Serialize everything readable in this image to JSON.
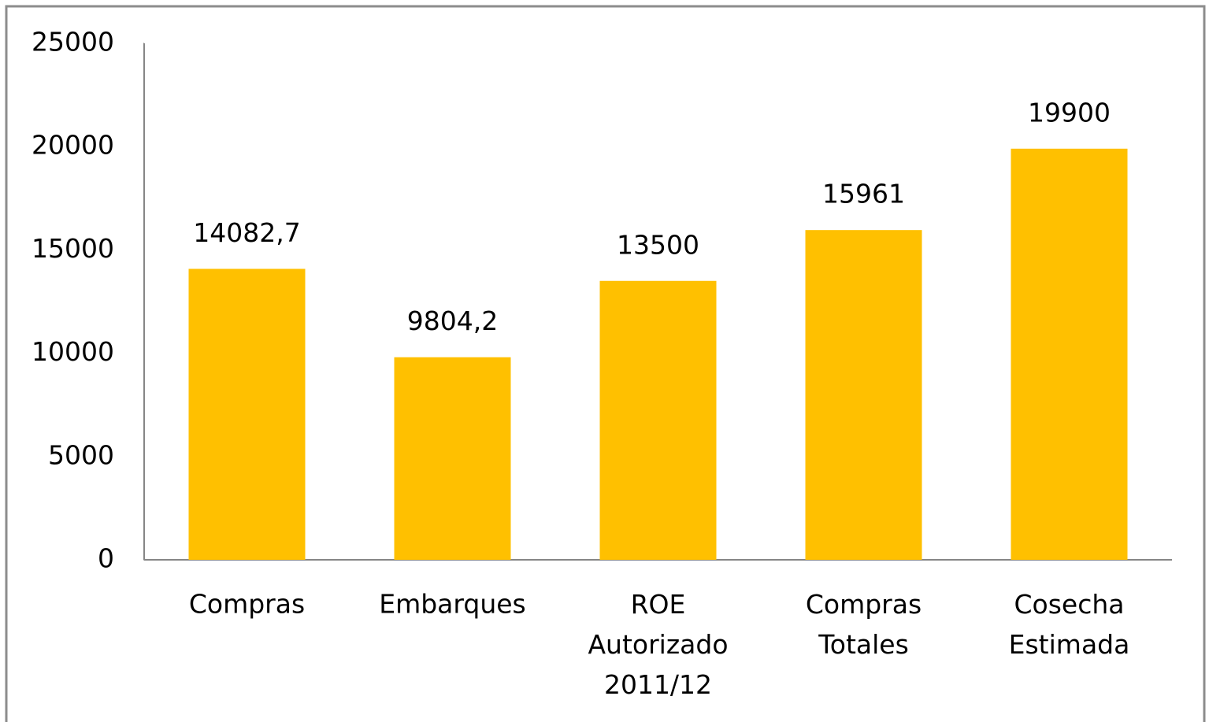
{
  "chart_data": {
    "type": "bar",
    "categories": [
      "Compras",
      "Embarques",
      "ROE\nAutorizado\n2011/12",
      "Compras\nTotales",
      "Cosecha\nEstimada"
    ],
    "values": [
      14082.7,
      9804.2,
      13500,
      15961,
      19900
    ],
    "value_labels": [
      "14082,7",
      "9804,2",
      "13500",
      "15961",
      "19900"
    ],
    "color": "#ffc000",
    "ylim": [
      0,
      25000
    ],
    "yticks": [
      0,
      5000,
      10000,
      15000,
      20000,
      25000
    ],
    "grid": false
  }
}
